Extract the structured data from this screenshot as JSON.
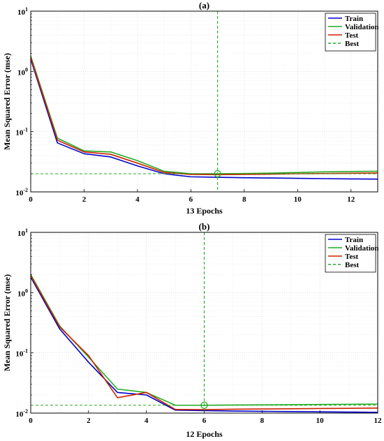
{
  "chart_data": [
    {
      "type": "line",
      "title": "(a)",
      "xlabel": "13 Epochs",
      "ylabel": "Mean Squared Error  (mse)",
      "yscale": "log",
      "xlim": [
        0,
        13
      ],
      "ylim": [
        0.01,
        10
      ],
      "xticks": [
        0,
        2,
        4,
        6,
        8,
        10,
        12
      ],
      "yticks": [
        0.01,
        0.1,
        1,
        10
      ],
      "ytick_labels": [
        [
          "10",
          "-2"
        ],
        [
          "10",
          "-1"
        ],
        [
          "10",
          "0"
        ],
        [
          "10",
          "1"
        ]
      ],
      "grid": true,
      "legend_position": "top-right",
      "x": [
        0,
        1,
        2,
        3,
        4,
        5,
        6,
        7,
        8,
        9,
        10,
        11,
        12,
        13
      ],
      "series": [
        {
          "name": "Train",
          "color": "#0000cc",
          "dash": "solid",
          "values": [
            1.6,
            0.065,
            0.043,
            0.038,
            0.027,
            0.02,
            0.0178,
            0.0175,
            0.0172,
            0.017,
            0.0168,
            0.0166,
            0.0164,
            0.0163
          ]
        },
        {
          "name": "Validation",
          "color": "#22aa22",
          "dash": "solid",
          "values": [
            1.8,
            0.078,
            0.048,
            0.046,
            0.033,
            0.022,
            0.02,
            0.02,
            0.0202,
            0.0205,
            0.021,
            0.0215,
            0.0218,
            0.022
          ]
        },
        {
          "name": "Test",
          "color": "#cc2200",
          "dash": "solid",
          "values": [
            1.7,
            0.072,
            0.046,
            0.042,
            0.03,
            0.021,
            0.0195,
            0.0193,
            0.0195,
            0.0197,
            0.02,
            0.0202,
            0.0204,
            0.0206
          ]
        }
      ],
      "best": {
        "name": "Best",
        "color": "#22aa22",
        "epoch": 7,
        "value": 0.02
      }
    },
    {
      "type": "line",
      "title": "(b)",
      "xlabel": "12 Epochs",
      "ylabel": "Mean Squared Error  (mse)",
      "yscale": "log",
      "xlim": [
        0,
        12
      ],
      "ylim": [
        0.01,
        10
      ],
      "xticks": [
        0,
        2,
        4,
        6,
        8,
        10,
        12
      ],
      "yticks": [
        0.01,
        0.1,
        1,
        10
      ],
      "ytick_labels": [
        [
          "10",
          "-2"
        ],
        [
          "10",
          "-1"
        ],
        [
          "10",
          "0"
        ],
        [
          "10",
          "1"
        ]
      ],
      "grid": true,
      "legend_position": "top-right",
      "x": [
        0,
        1,
        2,
        3,
        4,
        5,
        6,
        7,
        8,
        9,
        10,
        11,
        12
      ],
      "series": [
        {
          "name": "Train",
          "color": "#0000cc",
          "dash": "solid",
          "values": [
            1.8,
            0.25,
            0.07,
            0.022,
            0.02,
            0.0112,
            0.011,
            0.0108,
            0.0107,
            0.0106,
            0.0105,
            0.0104,
            0.0103
          ]
        },
        {
          "name": "Validation",
          "color": "#22aa22",
          "dash": "solid",
          "values": [
            2.0,
            0.28,
            0.085,
            0.025,
            0.022,
            0.0135,
            0.0135,
            0.0136,
            0.0137,
            0.0138,
            0.0139,
            0.014,
            0.0141
          ]
        },
        {
          "name": "Test",
          "color": "#cc2200",
          "dash": "solid",
          "values": [
            1.9,
            0.27,
            0.09,
            0.018,
            0.022,
            0.0115,
            0.0114,
            0.0116,
            0.0117,
            0.0118,
            0.0119,
            0.012,
            0.0121
          ]
        }
      ],
      "best": {
        "name": "Best",
        "color": "#22aa22",
        "epoch": 6,
        "value": 0.0135
      }
    }
  ]
}
